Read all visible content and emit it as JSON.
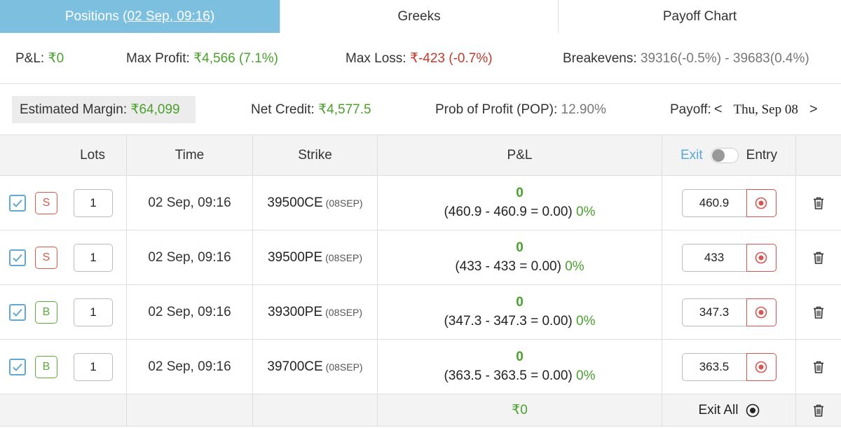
{
  "tabs": [
    {
      "label": "Positions (",
      "date": "02 Sep, 09:16",
      "suffix": ")"
    },
    {
      "label": "Greeks"
    },
    {
      "label": "Payoff Chart"
    }
  ],
  "summary": {
    "pnl_label": "P&L:",
    "pnl_value": "₹0",
    "max_profit_label": "Max Profit:",
    "max_profit_value": "₹4,566 (7.1%)",
    "max_loss_label": "Max Loss:",
    "max_loss_value": "₹-423 (-0.7%)",
    "breakevens_label": "Breakevens:",
    "breakevens_value": "39316(-0.5%) - 39683(0.4%)",
    "margin_label": "Estimated Margin:",
    "margin_value": "₹64,099",
    "net_credit_label": "Net Credit:",
    "net_credit_value": "₹4,577.5",
    "pop_label": "Prob of Profit (POP):",
    "pop_value": "12.90%",
    "payoff_label": "Payoff:",
    "payoff_prev": "<",
    "payoff_date": "Thu, Sep 08",
    "payoff_next": ">"
  },
  "table": {
    "headers": {
      "lots": "Lots",
      "time": "Time",
      "strike": "Strike",
      "pnl": "P&L",
      "exit": "Exit",
      "entry": "Entry"
    },
    "rows": [
      {
        "side": "S",
        "lots": "1",
        "time": "02 Sep, 09:16",
        "strike": "39500CE",
        "expiry": "(08SEP)",
        "pnl": "0",
        "detail": "(460.9 - 460.9 = 0.00)",
        "pct": "0%",
        "price": "460.9"
      },
      {
        "side": "S",
        "lots": "1",
        "time": "02 Sep, 09:16",
        "strike": "39500PE",
        "expiry": "(08SEP)",
        "pnl": "0",
        "detail": "(433 - 433 = 0.00)",
        "pct": "0%",
        "price": "433"
      },
      {
        "side": "B",
        "lots": "1",
        "time": "02 Sep, 09:16",
        "strike": "39300PE",
        "expiry": "(08SEP)",
        "pnl": "0",
        "detail": "(347.3 - 347.3 = 0.00)",
        "pct": "0%",
        "price": "347.3"
      },
      {
        "side": "B",
        "lots": "1",
        "time": "02 Sep, 09:16",
        "strike": "39700CE",
        "expiry": "(08SEP)",
        "pnl": "0",
        "detail": "(363.5 - 363.5 = 0.00)",
        "pct": "0%",
        "price": "363.5"
      }
    ],
    "footer": {
      "total_pnl": "₹0",
      "exit_all_label": "Exit All"
    }
  },
  "colors": {
    "active_tab": "#7dbfdf",
    "profit_green": "#4aa02c",
    "loss_red": "#c0392b",
    "sell_badge": "#d25a4a",
    "buy_badge": "#5caa3c",
    "checkbox_blue": "#5fa9d3"
  },
  "icons": {
    "checkbox": "check-icon",
    "exit_position": "record-icon",
    "delete": "trash-icon",
    "exit_all": "record-icon"
  }
}
